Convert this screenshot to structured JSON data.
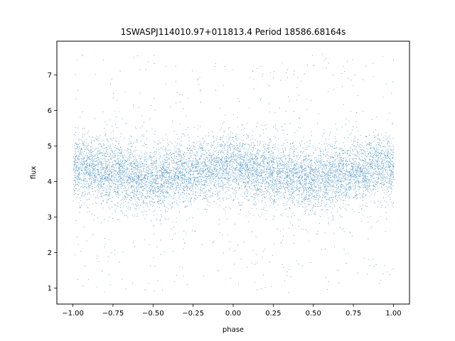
{
  "chart_data": {
    "type": "scatter",
    "title": "1SWASPJ114010.97+011813.4 Period 18586.68164s",
    "xlabel": "phase",
    "ylabel": "flux",
    "xlim": [
      -1.1,
      1.1
    ],
    "ylim": [
      0.55,
      7.95
    ],
    "x_ticks": [
      -1.0,
      -0.75,
      -0.5,
      -0.25,
      0.0,
      0.25,
      0.5,
      0.75,
      1.0
    ],
    "x_tick_labels": [
      "−1.00",
      "−0.75",
      "−0.50",
      "−0.25",
      "0.00",
      "0.25",
      "0.50",
      "0.75",
      "1.00"
    ],
    "y_ticks": [
      1,
      2,
      3,
      4,
      5,
      6,
      7
    ],
    "y_tick_labels": [
      "1",
      "2",
      "3",
      "4",
      "5",
      "6",
      "7"
    ],
    "grid": false,
    "marker_color": "#1f77b4",
    "series": [
      {
        "values_summary": "dense phase-folded light curve; flux concentrated 3.5–5.2, median ~4.3, sparse scatter from ~0.85 to ~7.6 across phase -1 to 1",
        "trend_x": [
          -1.0,
          -0.75,
          -0.5,
          -0.25,
          0.0,
          0.25,
          0.5,
          0.75,
          1.0
        ],
        "trend_y": [
          4.45,
          4.25,
          4.05,
          4.3,
          4.45,
          4.25,
          4.05,
          4.3,
          4.45
        ],
        "core_spread": 0.45,
        "flux_min": 0.85,
        "flux_max": 7.6
      }
    ]
  }
}
